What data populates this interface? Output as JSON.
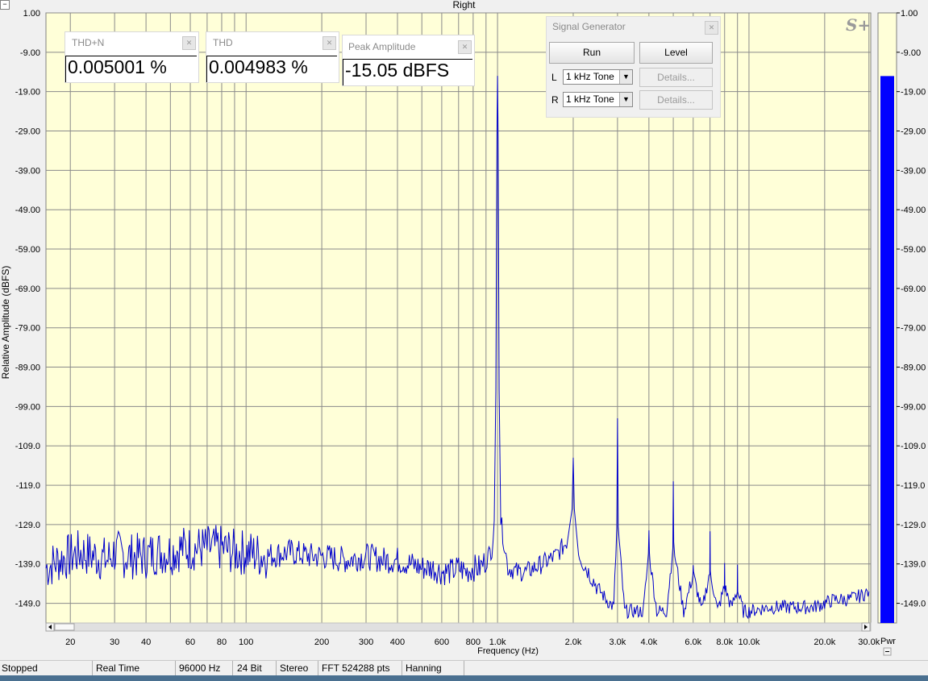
{
  "window": {
    "title": "Right"
  },
  "chart_data": {
    "type": "line",
    "title": "Right",
    "xlabel": "Frequency (Hz)",
    "ylabel": "Relative Amplitude (dBFS)",
    "xscale": "log",
    "xlim": [
      16,
      30500
    ],
    "ylim": [
      -154,
      1
    ],
    "grid": true,
    "y_ticks": [
      1,
      -9,
      -19,
      -29,
      -39,
      -49,
      -59,
      -69,
      -79,
      -89,
      -99,
      -109,
      -119,
      -129,
      -139,
      -149
    ],
    "y_tick_labels": [
      "1.00",
      "-9.00",
      "-19.00",
      "-29.00",
      "-39.00",
      "-49.00",
      "-59.00",
      "-69.00",
      "-79.00",
      "-89.00",
      "-99.00",
      "-109.0",
      "-119.0",
      "-129.0",
      "-139.0",
      "-149.0"
    ],
    "x_ticks": [
      20,
      30,
      40,
      60,
      80,
      100,
      200,
      300,
      400,
      600,
      800,
      1000,
      2000,
      3000,
      4000,
      6000,
      8000,
      10000,
      20000,
      30000
    ],
    "x_tick_labels": [
      "20",
      "30",
      "40",
      "60",
      "80",
      "100",
      "200",
      "300",
      "400",
      "600",
      "800",
      "1.0k",
      "2.0k",
      "3.0k",
      "4.0k",
      "6.0k",
      "8.0k",
      "10.0k",
      "20.0k",
      "30.0k"
    ],
    "series": [
      {
        "color": "#0000cc",
        "x": [
          16,
          18,
          20,
          22,
          25,
          28,
          30,
          33,
          36,
          40,
          44,
          50,
          55,
          60,
          66,
          70,
          80,
          90,
          100,
          120,
          150,
          180,
          200,
          250,
          300,
          350,
          400,
          450,
          500,
          550,
          600,
          650,
          700,
          750,
          800,
          850,
          900,
          950,
          970,
          985,
          995,
          1000,
          1005,
          1015,
          1030,
          1100,
          1200,
          1300,
          1400,
          1500,
          1600,
          1700,
          1800,
          1900,
          1980,
          2000,
          2020,
          2100,
          2200,
          2300,
          2500,
          2700,
          2900,
          2980,
          3000,
          3020,
          3200,
          3500,
          3800,
          3980,
          4000,
          4020,
          4300,
          4700,
          4980,
          5000,
          5020,
          5500,
          5980,
          6000,
          6020,
          6500,
          6980,
          7000,
          7020,
          7500,
          7980,
          8000,
          8020,
          8500,
          8980,
          9000,
          9020,
          9500,
          10000,
          12000,
          15000,
          18000,
          20000,
          22000,
          25000,
          28000,
          30000
        ],
        "y": [
          -140,
          -138,
          -137,
          -136,
          -137,
          -138,
          -136,
          -137,
          -137,
          -137,
          -136,
          -136,
          -135,
          -135,
          -135,
          -135,
          -135,
          -136,
          -136,
          -137,
          -136,
          -137,
          -137,
          -138,
          -137,
          -138,
          -138,
          -139,
          -140,
          -140,
          -141,
          -141,
          -140,
          -141,
          -140,
          -140,
          -138,
          -135,
          -128,
          -95,
          -30,
          -15,
          -30,
          -95,
          -128,
          -140,
          -141,
          -141,
          -140,
          -139,
          -138,
          -137,
          -135,
          -133,
          -125,
          -112,
          -125,
          -136,
          -139,
          -141,
          -145,
          -148,
          -150,
          -130,
          -102,
          -130,
          -151,
          -151,
          -151,
          -137,
          -129,
          -137,
          -151,
          -151,
          -135,
          -118,
          -135,
          -151,
          -142,
          -139,
          -142,
          -151,
          -141,
          -132,
          -141,
          -151,
          -145,
          -139,
          -145,
          -150,
          -146,
          -138,
          -146,
          -151,
          -151,
          -150,
          -150,
          -150,
          -149,
          -148,
          -148,
          -147,
          -146
        ]
      }
    ]
  },
  "widgets": {
    "thdn": {
      "title": "THD+N",
      "value": "0.005001 %"
    },
    "thd": {
      "title": "THD",
      "value": "0.004983 %"
    },
    "peak": {
      "title": "Peak Amplitude",
      "value": "-15.05 dBFS"
    }
  },
  "signal_generator": {
    "title": "Signal Generator",
    "run_label": "Run",
    "level_label": "Level",
    "left_label": "L",
    "right_label": "R",
    "left_tone": "1 kHz Tone",
    "right_tone": "1 kHz Tone",
    "details_label": "Details..."
  },
  "meter": {
    "level": -15.05,
    "unit_label": "Pwr",
    "color": "#0000ff",
    "tick_labels": [
      "1.00",
      "-9.00",
      "-19.00",
      "-29.00",
      "-39.00",
      "-49.00",
      "-59.00",
      "-69.00",
      "-79.00",
      "-89.00",
      "-99.00",
      "-109.0",
      "-119.0",
      "-129.0",
      "-139.0",
      "-149.0"
    ]
  },
  "status_bar": {
    "state": "Stopped",
    "mode": "Real Time",
    "sample_rate": "96000 Hz",
    "bit_depth": "24 Bit",
    "channels": "Stereo",
    "fft": "FFT 524288 pts",
    "window": "Hanning"
  },
  "colors": {
    "plot_bg": "#ffffd8",
    "grid": "#808080",
    "trace": "#0000cc",
    "meter": "#0000ff"
  }
}
